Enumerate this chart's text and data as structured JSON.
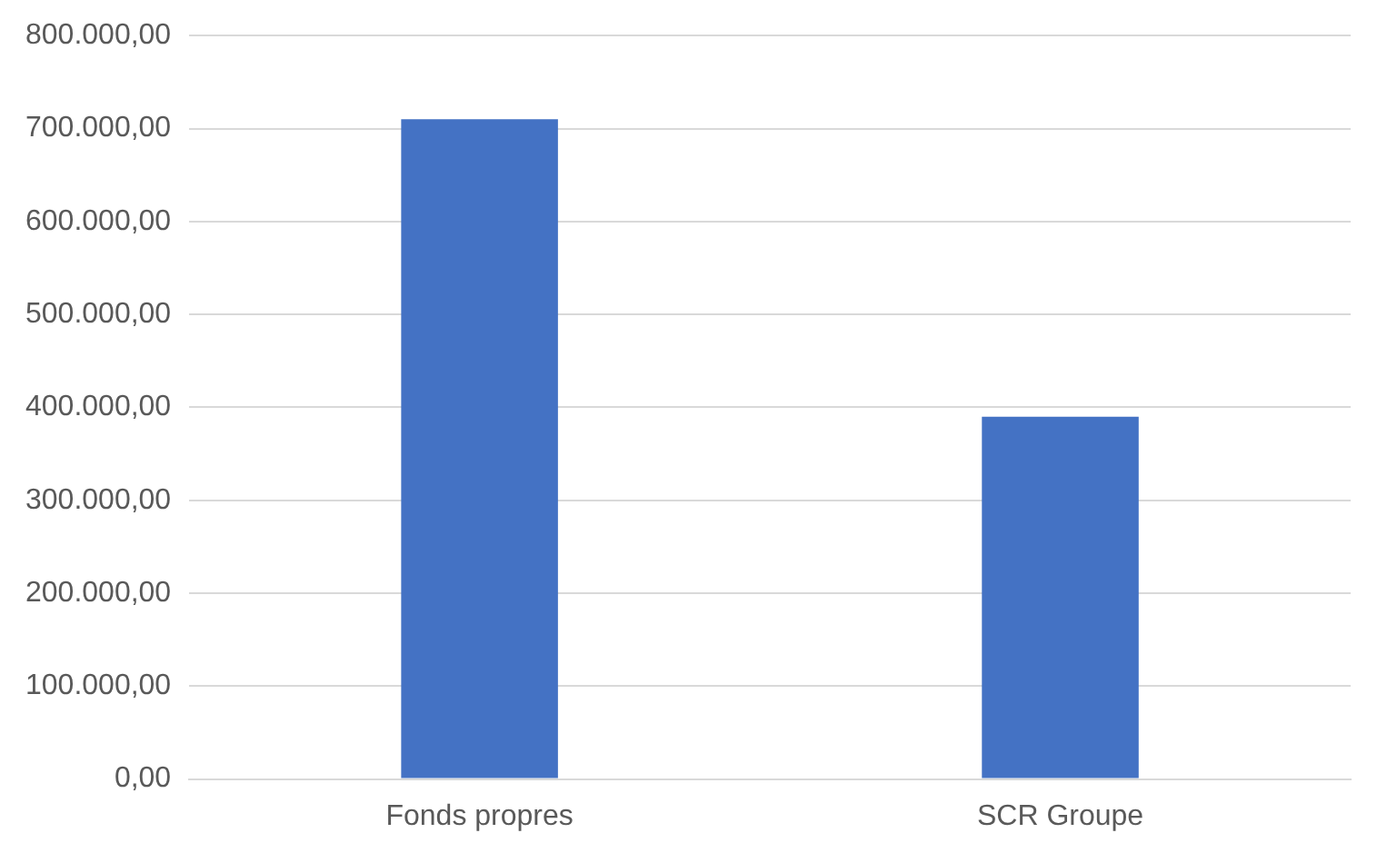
{
  "chart_data": {
    "type": "bar",
    "categories": [
      "Fonds propres",
      "SCR Groupe"
    ],
    "values": [
      710000,
      390000
    ],
    "color": "#4472c4",
    "ylim": [
      0,
      800000
    ],
    "yticks": [
      {
        "value": 0,
        "label": "0,00"
      },
      {
        "value": 100000,
        "label": "100.000,00"
      },
      {
        "value": 200000,
        "label": "200.000,00"
      },
      {
        "value": 300000,
        "label": "300.000,00"
      },
      {
        "value": 400000,
        "label": "400.000,00"
      },
      {
        "value": 500000,
        "label": "500.000,00"
      },
      {
        "value": 600000,
        "label": "600.000,00"
      },
      {
        "value": 700000,
        "label": "700.000,00"
      },
      {
        "value": 800000,
        "label": "800.000,00"
      }
    ],
    "grid": "y"
  }
}
